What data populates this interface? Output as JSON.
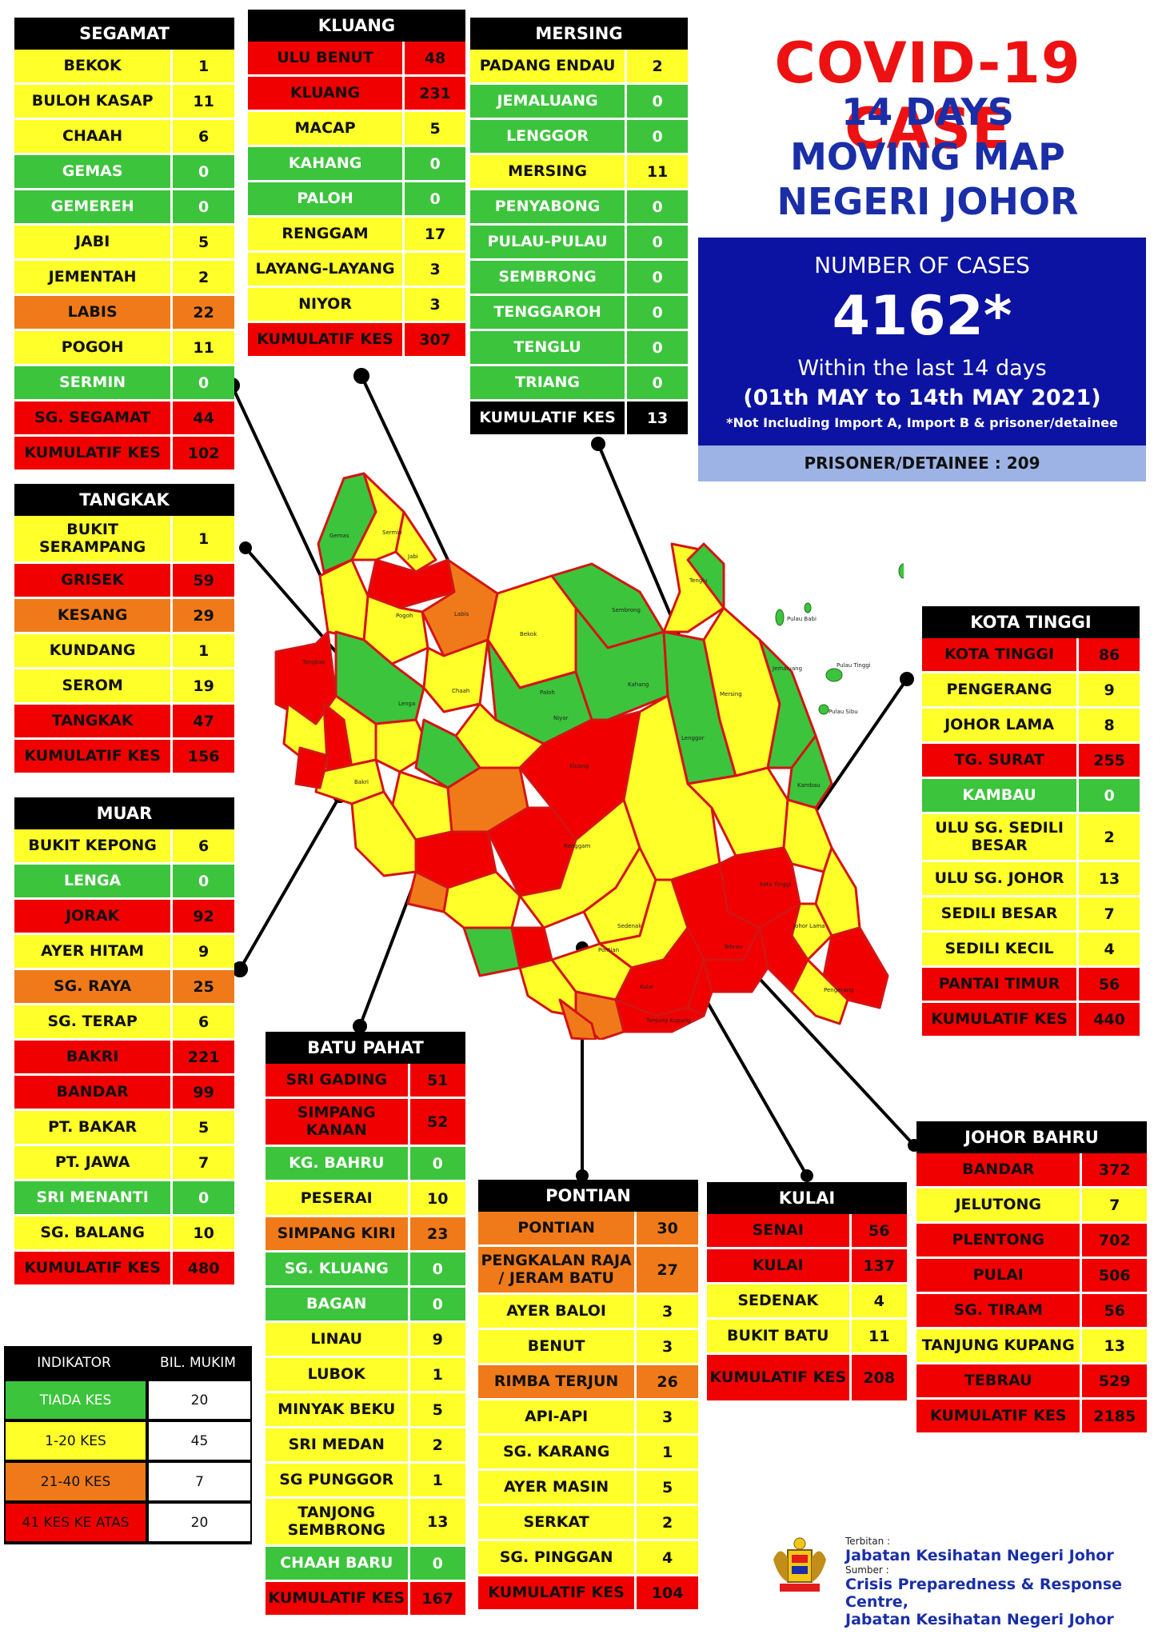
{
  "title": {
    "line1": "COVID-19 CASE",
    "line2": "14 DAYS",
    "line3": "MOVING MAP",
    "line4": "NEGERI JOHOR"
  },
  "summary": {
    "label": "NUMBER OF CASES",
    "total": "4162*",
    "within": "Within the last 14 days",
    "dates": "(01th MAY to 14th MAY 2021)",
    "note": "*Not Including Import A, Import B & prisoner/detainee",
    "prisoner": "PRISONER/DETAINEE : 209"
  },
  "colors": {
    "green": "#3cc43c",
    "yellow": "#ffff2a",
    "orange": "#f07a1a",
    "red": "#f00000"
  },
  "districts": {
    "segamat": {
      "title": "SEGAMAT",
      "rows": [
        {
          "name": "BEKOK",
          "value": "1",
          "c": "yellow"
        },
        {
          "name": "BULOH KASAP",
          "value": "11",
          "c": "yellow"
        },
        {
          "name": "CHAAH",
          "value": "6",
          "c": "yellow"
        },
        {
          "name": "GEMAS",
          "value": "0",
          "c": "green"
        },
        {
          "name": "GEMEREH",
          "value": "0",
          "c": "green"
        },
        {
          "name": "JABI",
          "value": "5",
          "c": "yellow"
        },
        {
          "name": "JEMENTAH",
          "value": "2",
          "c": "yellow"
        },
        {
          "name": "LABIS",
          "value": "22",
          "c": "orange"
        },
        {
          "name": "POGOH",
          "value": "11",
          "c": "yellow"
        },
        {
          "name": "SERMIN",
          "value": "0",
          "c": "green"
        },
        {
          "name": "SG. SEGAMAT",
          "value": "44",
          "c": "red"
        },
        {
          "name": "KUMULATIF KES",
          "value": "102",
          "c": "red"
        }
      ]
    },
    "kluang": {
      "title": "KLUANG",
      "rows": [
        {
          "name": "ULU BENUT",
          "value": "48",
          "c": "red"
        },
        {
          "name": "KLUANG",
          "value": "231",
          "c": "red"
        },
        {
          "name": "MACAP",
          "value": "5",
          "c": "yellow"
        },
        {
          "name": "KAHANG",
          "value": "0",
          "c": "green"
        },
        {
          "name": "PALOH",
          "value": "0",
          "c": "green"
        },
        {
          "name": "RENGGAM",
          "value": "17",
          "c": "yellow"
        },
        {
          "name": "LAYANG-LAYANG",
          "value": "3",
          "c": "yellow"
        },
        {
          "name": "NIYOR",
          "value": "3",
          "c": "yellow"
        },
        {
          "name": "KUMULATIF KES",
          "value": "307",
          "c": "red"
        }
      ]
    },
    "mersing": {
      "title": "MERSING",
      "rows": [
        {
          "name": "PADANG ENDAU",
          "value": "2",
          "c": "yellow"
        },
        {
          "name": "JEMALUANG",
          "value": "0",
          "c": "green"
        },
        {
          "name": "LENGGOR",
          "value": "0",
          "c": "green"
        },
        {
          "name": "MERSING",
          "value": "11",
          "c": "yellow"
        },
        {
          "name": "PENYABONG",
          "value": "0",
          "c": "green"
        },
        {
          "name": "PULAU-PULAU",
          "value": "0",
          "c": "green"
        },
        {
          "name": "SEMBRONG",
          "value": "0",
          "c": "green"
        },
        {
          "name": "TENGGAROH",
          "value": "0",
          "c": "green"
        },
        {
          "name": "TENGLU",
          "value": "0",
          "c": "green"
        },
        {
          "name": "TRIANG",
          "value": "0",
          "c": "green"
        },
        {
          "name": "KUMULATIF KES",
          "value": "13",
          "c": "black"
        }
      ]
    },
    "tangkak": {
      "title": "TANGKAK",
      "rows": [
        {
          "name": "BUKIT SERAMPANG",
          "value": "1",
          "c": "yellow",
          "tall": true
        },
        {
          "name": "GRISEK",
          "value": "59",
          "c": "red"
        },
        {
          "name": "KESANG",
          "value": "29",
          "c": "orange"
        },
        {
          "name": "KUNDANG",
          "value": "1",
          "c": "yellow"
        },
        {
          "name": "SEROM",
          "value": "19",
          "c": "yellow"
        },
        {
          "name": "TANGKAK",
          "value": "47",
          "c": "red"
        },
        {
          "name": "KUMULATIF KES",
          "value": "156",
          "c": "red"
        }
      ]
    },
    "muar": {
      "title": "MUAR",
      "rows": [
        {
          "name": "BUKIT KEPONG",
          "value": "6",
          "c": "yellow"
        },
        {
          "name": "LENGA",
          "value": "0",
          "c": "green"
        },
        {
          "name": "JORAK",
          "value": "92",
          "c": "red"
        },
        {
          "name": "AYER HITAM",
          "value": "9",
          "c": "yellow"
        },
        {
          "name": "SG. RAYA",
          "value": "25",
          "c": "orange"
        },
        {
          "name": "SG. TERAP",
          "value": "6",
          "c": "yellow"
        },
        {
          "name": "BAKRI",
          "value": "221",
          "c": "red"
        },
        {
          "name": "BANDAR",
          "value": "99",
          "c": "red"
        },
        {
          "name": "PT. BAKAR",
          "value": "5",
          "c": "yellow"
        },
        {
          "name": "PT. JAWA",
          "value": "7",
          "c": "yellow"
        },
        {
          "name": "SRI MENANTI",
          "value": "0",
          "c": "green"
        },
        {
          "name": "SG. BALANG",
          "value": "10",
          "c": "yellow"
        },
        {
          "name": "KUMULATIF KES",
          "value": "480",
          "c": "red"
        }
      ]
    },
    "batupahat": {
      "title": "BATU PAHAT",
      "rows": [
        {
          "name": "SRI GADING",
          "value": "51",
          "c": "red"
        },
        {
          "name": "SIMPANG KANAN",
          "value": "52",
          "c": "red",
          "tall": true
        },
        {
          "name": "KG. BAHRU",
          "value": "0",
          "c": "green"
        },
        {
          "name": "PESERAI",
          "value": "10",
          "c": "yellow"
        },
        {
          "name": "SIMPANG KIRI",
          "value": "23",
          "c": "orange"
        },
        {
          "name": "SG. KLUANG",
          "value": "0",
          "c": "green"
        },
        {
          "name": "BAGAN",
          "value": "0",
          "c": "green"
        },
        {
          "name": "LINAU",
          "value": "9",
          "c": "yellow"
        },
        {
          "name": "LUBOK",
          "value": "1",
          "c": "yellow"
        },
        {
          "name": "MINYAK BEKU",
          "value": "5",
          "c": "yellow"
        },
        {
          "name": "SRI MEDAN",
          "value": "2",
          "c": "yellow"
        },
        {
          "name": "SG PUNGGOR",
          "value": "1",
          "c": "yellow"
        },
        {
          "name": "TANJONG SEMBRONG",
          "value": "13",
          "c": "yellow",
          "tall": true
        },
        {
          "name": "CHAAH BARU",
          "value": "0",
          "c": "green"
        },
        {
          "name": "KUMULATIF KES",
          "value": "167",
          "c": "red"
        }
      ]
    },
    "pontian": {
      "title": "PONTIAN",
      "rows": [
        {
          "name": "PONTIAN",
          "value": "30",
          "c": "orange"
        },
        {
          "name": "PENGKALAN RAJA / JERAM BATU",
          "value": "27",
          "c": "orange",
          "tall": true
        },
        {
          "name": "AYER BALOI",
          "value": "3",
          "c": "yellow"
        },
        {
          "name": "BENUT",
          "value": "3",
          "c": "yellow"
        },
        {
          "name": "RIMBA TERJUN",
          "value": "26",
          "c": "orange"
        },
        {
          "name": "API-API",
          "value": "3",
          "c": "yellow"
        },
        {
          "name": "SG. KARANG",
          "value": "1",
          "c": "yellow"
        },
        {
          "name": "AYER MASIN",
          "value": "5",
          "c": "yellow"
        },
        {
          "name": "SERKAT",
          "value": "2",
          "c": "yellow"
        },
        {
          "name": "SG. PINGGAN",
          "value": "4",
          "c": "yellow"
        },
        {
          "name": "KUMULATIF KES",
          "value": "104",
          "c": "red"
        }
      ]
    },
    "kulai": {
      "title": "KULAI",
      "rows": [
        {
          "name": "SENAI",
          "value": "56",
          "c": "red"
        },
        {
          "name": "KULAI",
          "value": "137",
          "c": "red"
        },
        {
          "name": "SEDENAK",
          "value": "4",
          "c": "yellow"
        },
        {
          "name": "BUKIT BATU",
          "value": "11",
          "c": "yellow"
        },
        {
          "name": "KUMULATIF KES",
          "value": "208",
          "c": "red",
          "tall": true
        }
      ]
    },
    "kotatinggi": {
      "title": "KOTA TINGGI",
      "rows": [
        {
          "name": "KOTA TINGGI",
          "value": "86",
          "c": "red"
        },
        {
          "name": "PENGERANG",
          "value": "9",
          "c": "yellow"
        },
        {
          "name": "JOHOR LAMA",
          "value": "8",
          "c": "yellow"
        },
        {
          "name": "TG. SURAT",
          "value": "255",
          "c": "red"
        },
        {
          "name": "KAMBAU",
          "value": "0",
          "c": "green"
        },
        {
          "name": "ULU SG. SEDILI BESAR",
          "value": "2",
          "c": "yellow",
          "tall": true
        },
        {
          "name": "ULU  SG. JOHOR",
          "value": "13",
          "c": "yellow"
        },
        {
          "name": "SEDILI BESAR",
          "value": "7",
          "c": "yellow"
        },
        {
          "name": "SEDILI KECIL",
          "value": "4",
          "c": "yellow"
        },
        {
          "name": "PANTAI TIMUR",
          "value": "56",
          "c": "red"
        },
        {
          "name": "KUMULATIF KES",
          "value": "440",
          "c": "red"
        }
      ]
    },
    "johorbahru": {
      "title": "JOHOR BAHRU",
      "rows": [
        {
          "name": "BANDAR",
          "value": "372",
          "c": "red"
        },
        {
          "name": "JELUTONG",
          "value": "7",
          "c": "yellow"
        },
        {
          "name": "PLENTONG",
          "value": "702",
          "c": "red"
        },
        {
          "name": "PULAI",
          "value": "506",
          "c": "red"
        },
        {
          "name": "SG. TIRAM",
          "value": "56",
          "c": "red"
        },
        {
          "name": "TANJUNG KUPANG",
          "value": "13",
          "c": "yellow"
        },
        {
          "name": "TEBRAU",
          "value": "529",
          "c": "red"
        },
        {
          "name": "KUMULATIF KES",
          "value": "2185",
          "c": "red"
        }
      ]
    }
  },
  "legend": {
    "header": {
      "key": "INDIKATOR",
      "value": "BIL. MUKIM"
    },
    "rows": [
      {
        "key": "TIADA KES",
        "value": "20",
        "c": "green"
      },
      {
        "key": "1-20 KES",
        "value": "45",
        "c": "yellow"
      },
      {
        "key": "21-40 KES",
        "value": "7",
        "c": "orange"
      },
      {
        "key": "41 KES KE ATAS",
        "value": "20",
        "c": "red"
      }
    ]
  },
  "footer": {
    "terbitan_label": "Terbitan :",
    "terbitan": "Jabatan Kesihatan Negeri Johor",
    "sumber_label": "Sumber :",
    "sumber1": "Crisis Preparedness & Response Centre,",
    "sumber2": "Jabatan Kesihatan Negeri Johor"
  },
  "map_labels": {
    "gemas": "Gemas",
    "sermin": "Sermin",
    "jabi": "Jabi",
    "bekok": "Bekok",
    "sembrong": "Sembrong",
    "kahang": "Kahang",
    "paloh": "Paloh",
    "niyor": "Niyor",
    "lenggor": "Lenggor",
    "mersing": "Mersing",
    "kluang": "Kluang",
    "renggam": "Renggam",
    "labis": "Labis",
    "chaah": "Chaah",
    "pogoh": "Pogoh",
    "tangkak": "Tangkak",
    "lenga": "Lenga",
    "bakri": "Bakri",
    "sedenak": "Sedenak",
    "kotatinggi": "Kota Tinggi",
    "tenglu": "Tenglu",
    "pulaububi": "Pulau Babi",
    "pulautinggi": "Pulau Tinggi",
    "pulausibu": "Pulau Sibu",
    "pontian": "Pontian",
    "kulai": "Kulai",
    "tebrau": "Tebrau",
    "pengerang": "Pengerang",
    "johorlama": "Johor Lama",
    "kambau": "Kambau",
    "jemaluang": "Jemaluang",
    "tg_kupang": "Tanjung Kupang"
  }
}
